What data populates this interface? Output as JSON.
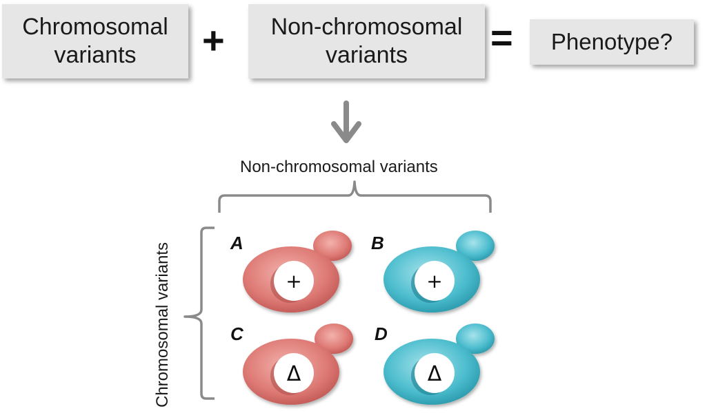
{
  "equation": {
    "term1": "Chromosomal\nvariants",
    "plus": "+",
    "term2": "Non-chromosomal\nvariants",
    "equals": "=",
    "result": "Phenotype?"
  },
  "grid": {
    "column_header": "Non-chromosomal variants",
    "row_header": "Chromosomal variants",
    "cells": [
      {
        "letter": "A",
        "symbol": "+",
        "color": "red"
      },
      {
        "letter": "B",
        "symbol": "+",
        "color": "teal"
      },
      {
        "letter": "C",
        "symbol": "Δ",
        "color": "red"
      },
      {
        "letter": "D",
        "symbol": "Δ",
        "color": "teal"
      }
    ]
  },
  "colors": {
    "red_cell": "#d9716f",
    "teal_cell": "#3fb3c6",
    "box_fill": "#e6e6e6",
    "arrow": "#8a8a8a",
    "bracket": "#8a8a8a"
  }
}
